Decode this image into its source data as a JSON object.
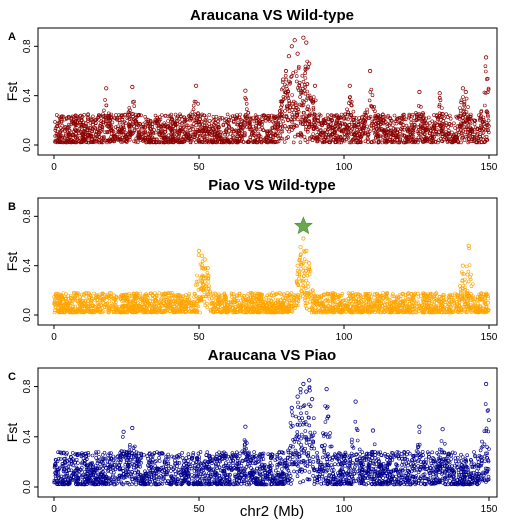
{
  "figure": {
    "xlabel": "chr2 (Mb)"
  },
  "chart_data": [
    {
      "type": "scatter",
      "letter": "A",
      "title": "Araucana VS Wild-type",
      "xlabel": "",
      "ylabel": "Fst",
      "xlim": [
        0,
        150
      ],
      "ylim": [
        0,
        0.9
      ],
      "xticks": [
        0,
        50,
        100,
        150
      ],
      "xtick_labels": [
        "0",
        "50",
        "100",
        "150"
      ],
      "yticks": [
        0.0,
        0.4,
        0.8
      ],
      "ytick_labels": [
        "0.0",
        "0.4",
        "0.8"
      ],
      "color": "#8b0000",
      "grid": false,
      "baseline_fst": [
        0.02,
        0.25
      ],
      "peak_points": [
        {
          "x": 18,
          "y": 0.46
        },
        {
          "x": 27,
          "y": 0.47
        },
        {
          "x": 49,
          "y": 0.48
        },
        {
          "x": 66,
          "y": 0.44
        },
        {
          "x": 79,
          "y": 0.53
        },
        {
          "x": 80,
          "y": 0.6
        },
        {
          "x": 81,
          "y": 0.72
        },
        {
          "x": 82,
          "y": 0.8
        },
        {
          "x": 83,
          "y": 0.85
        },
        {
          "x": 84,
          "y": 0.74
        },
        {
          "x": 86,
          "y": 0.87
        },
        {
          "x": 87,
          "y": 0.83
        },
        {
          "x": 88,
          "y": 0.66
        },
        {
          "x": 90,
          "y": 0.48
        },
        {
          "x": 102,
          "y": 0.48
        },
        {
          "x": 109,
          "y": 0.6
        },
        {
          "x": 126,
          "y": 0.43
        },
        {
          "x": 133,
          "y": 0.42
        },
        {
          "x": 141,
          "y": 0.46
        },
        {
          "x": 142,
          "y": 0.43
        },
        {
          "x": 149,
          "y": 0.71
        }
      ]
    },
    {
      "type": "scatter",
      "letter": "B",
      "title": "Piao VS Wild-type",
      "xlabel": "",
      "ylabel": "Fst",
      "xlim": [
        0,
        150
      ],
      "ylim": [
        0,
        0.9
      ],
      "xticks": [
        0,
        50,
        100,
        150
      ],
      "xtick_labels": [
        "0",
        "50",
        "100",
        "150"
      ],
      "yticks": [
        0.0,
        0.4,
        0.8
      ],
      "ytick_labels": [
        "0.0",
        "0.4",
        "0.8"
      ],
      "color": "#ffa500",
      "grid": false,
      "baseline_fst": [
        0.02,
        0.18
      ],
      "peak_points": [
        {
          "x": 50,
          "y": 0.52
        },
        {
          "x": 51,
          "y": 0.48
        },
        {
          "x": 52,
          "y": 0.45
        },
        {
          "x": 53,
          "y": 0.38
        },
        {
          "x": 84,
          "y": 0.4
        },
        {
          "x": 85,
          "y": 0.55
        },
        {
          "x": 86,
          "y": 0.62
        },
        {
          "x": 87,
          "y": 0.52
        },
        {
          "x": 88,
          "y": 0.42
        },
        {
          "x": 143,
          "y": 0.56
        },
        {
          "x": 141,
          "y": 0.4
        }
      ],
      "marker": {
        "shape": "star",
        "x": 86,
        "y": 0.72,
        "color": "#6aa84f"
      }
    },
    {
      "type": "scatter",
      "letter": "C",
      "title": "Araucana VS Piao",
      "xlabel": "",
      "ylabel": "Fst",
      "xlim": [
        0,
        150
      ],
      "ylim": [
        0,
        0.9
      ],
      "xticks": [
        0,
        50,
        100,
        150
      ],
      "xtick_labels": [
        "0",
        "50",
        "100",
        "150"
      ],
      "yticks": [
        0.0,
        0.4,
        0.8
      ],
      "ytick_labels": [
        "0.0",
        "0.4",
        "0.8"
      ],
      "color": "#00008b",
      "grid": false,
      "baseline_fst": [
        0.02,
        0.28
      ],
      "peak_points": [
        {
          "x": 24,
          "y": 0.44
        },
        {
          "x": 27,
          "y": 0.47
        },
        {
          "x": 66,
          "y": 0.48
        },
        {
          "x": 82,
          "y": 0.63
        },
        {
          "x": 84,
          "y": 0.72
        },
        {
          "x": 85,
          "y": 0.78
        },
        {
          "x": 86,
          "y": 0.82
        },
        {
          "x": 87,
          "y": 0.76
        },
        {
          "x": 88,
          "y": 0.85
        },
        {
          "x": 89,
          "y": 0.7
        },
        {
          "x": 94,
          "y": 0.78
        },
        {
          "x": 104,
          "y": 0.68
        },
        {
          "x": 110,
          "y": 0.45
        },
        {
          "x": 126,
          "y": 0.48
        },
        {
          "x": 134,
          "y": 0.46
        },
        {
          "x": 149,
          "y": 0.82
        }
      ]
    }
  ]
}
